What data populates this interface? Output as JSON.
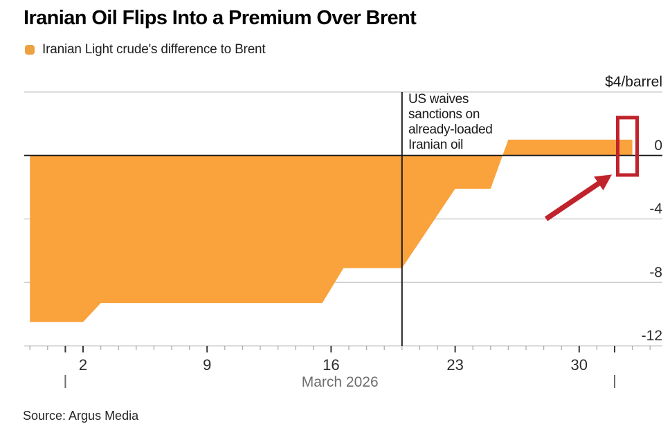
{
  "header": {
    "title": "Iranian Oil Flips Into a Premium Over Brent",
    "legend_label": "Iranian Light crude's difference to Brent"
  },
  "annotation": {
    "lines": [
      "US waives",
      "sanctions on",
      "already-loaded",
      "Iranian oil"
    ]
  },
  "source": "Source: Argus Media",
  "colors": {
    "area": "#FAA23C",
    "legend_swatch": "#ECA241",
    "highlight": "#C0232B",
    "grid_line": "#CFCFCF",
    "zero_line": "#1A1A1A",
    "event_line": "#1A1A1A",
    "axis_text": "#2B2B2B",
    "muted_text": "#6E6E6E",
    "minor_tick": "#ADADAD",
    "major_tick": "#3A3A3A"
  },
  "chart_data": {
    "type": "area",
    "title": "Iranian Oil Flips Into a Premium Over Brent",
    "unit": "$/barrel",
    "grid": true,
    "legend_position": "top-left",
    "series": [
      {
        "name": "Iranian Light crude's difference to Brent",
        "points_day_value": [
          [
            -1,
            -10.5
          ],
          [
            2,
            -10.5
          ],
          [
            3,
            -9.3
          ],
          [
            15.5,
            -9.3
          ],
          [
            16.7,
            -7.1
          ],
          [
            20,
            -7.1
          ],
          [
            23,
            -2.1
          ],
          [
            25,
            -2.1
          ],
          [
            26,
            1.0
          ],
          [
            33,
            1.0
          ]
        ]
      }
    ],
    "x_axis": {
      "month_label": "March 2026",
      "labeled_days": [
        {
          "day": 2,
          "label": "2"
        },
        {
          "day": 9,
          "label": "9"
        },
        {
          "day": 16,
          "label": "16"
        },
        {
          "day": 23,
          "label": "23"
        },
        {
          "day": 30,
          "label": "30"
        }
      ],
      "major_tick_days": [
        1,
        2,
        9,
        16,
        23,
        30,
        32
      ],
      "minor_tick_day_first": -1,
      "minor_tick_day_last": 34,
      "month_marker_days": [
        1,
        32
      ]
    },
    "y_axis": {
      "ylim": [
        -12,
        4
      ],
      "ticks": [
        {
          "value": 4,
          "label": "$4/barrel"
        },
        {
          "value": 0,
          "label": "0"
        },
        {
          "value": -4,
          "label": "-4"
        },
        {
          "value": -8,
          "label": "-8"
        },
        {
          "value": -12,
          "label": "-12"
        }
      ]
    },
    "event_line_day": 20,
    "highlight": {
      "type": "rectangle-and-arrow",
      "target": "latest positive value"
    }
  }
}
